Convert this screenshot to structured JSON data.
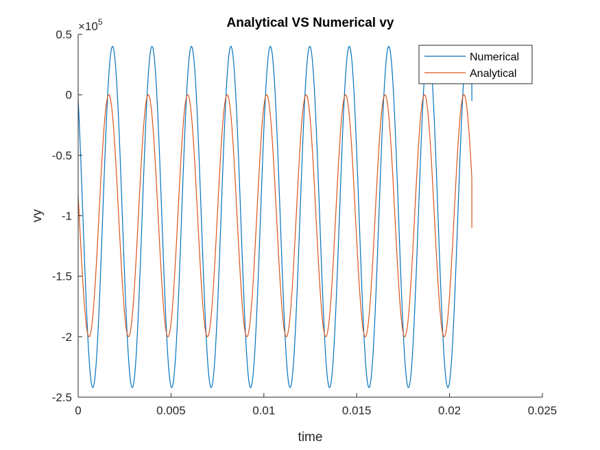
{
  "chart_data": {
    "type": "line",
    "title": "Analytical VS Numerical vy",
    "xlabel": "time",
    "ylabel": "vy",
    "exponent_base": "×10",
    "exponent_power": "5",
    "xlim": [
      0,
      0.025
    ],
    "ylim": [
      -250000,
      50000
    ],
    "x_ticks": [
      0,
      0.005,
      0.01,
      0.015,
      0.02,
      0.025
    ],
    "x_tick_labels": [
      "0",
      "0.005",
      "0.01",
      "0.015",
      "0.02",
      "0.025"
    ],
    "y_ticks": [
      50000,
      0,
      -50000,
      -100000,
      -150000,
      -200000,
      -250000
    ],
    "y_tick_labels": [
      "0.5",
      "0",
      "-0.5",
      "-1",
      "-1.5",
      "-2",
      "-2.5"
    ],
    "grid": false,
    "legend_position": "top-right",
    "colors": {
      "Numerical": "#0072BD",
      "Analytical": "#D95319"
    },
    "series": [
      {
        "name": "Numerical",
        "model": "sinusoid",
        "period": 0.002125,
        "max": 40000,
        "min": -242000,
        "first_max_at": 0.00185,
        "x_start": 0,
        "x_end": 0.0212,
        "y_start": 0,
        "y_end": -5000
      },
      {
        "name": "Analytical",
        "model": "sinusoid",
        "period": 0.002125,
        "max": 0,
        "min": -200000,
        "first_max_at": 0.00165,
        "x_start": 0,
        "x_end": 0.0212,
        "y_start": -90000,
        "y_end": -110000
      }
    ]
  }
}
